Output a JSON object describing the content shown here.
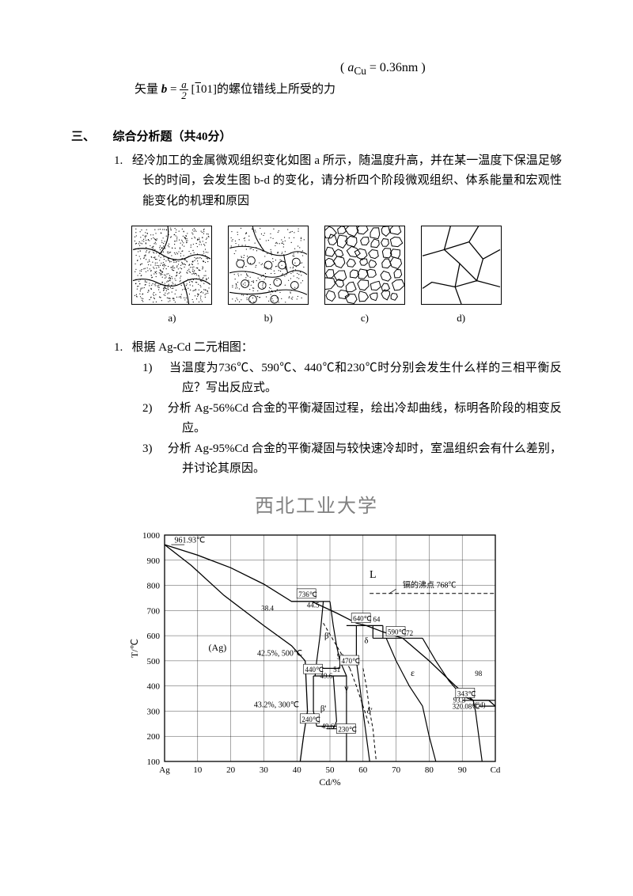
{
  "intro": {
    "pre": "矢量",
    "b": "b",
    "eq": " = ",
    "frac_num": "a",
    "frac_den": "2",
    "miller_open": " [",
    "miller_bar": "1",
    "miller_rest": "01]",
    "post": "的螺位错线上所受的力",
    "param": "( aCu = 0.36nm )",
    "param_a": "a",
    "param_sub": "Cu",
    "param_val": " = 0.36nm"
  },
  "section": {
    "num": "三、",
    "title": "综合分析题（共40分）"
  },
  "q1": {
    "num": "1.",
    "text": "经冷加工的金属微观组织变化如图 a 所示，随温度升高，并在某一温度下保温足够长的时间，会发生图 b-d 的变化，请分析四个阶段微观组织、体系能量和宏观性能变化的机理和原因"
  },
  "figlabels": {
    "a": "a)",
    "b": "b)",
    "c": "c)",
    "d": "d)"
  },
  "q2": {
    "num": "1.",
    "text": "根据 Ag-Cd 二元相图："
  },
  "q2_1": {
    "num": "1)",
    "text": "当温度为736℃、590℃、440℃和230℃时分别会发生什么样的三相平衡反应？写出反应式。"
  },
  "q2_2": {
    "num": "2)",
    "text": "分析 Ag-56%Cd 合金的平衡凝固过程，绘出冷却曲线，标明各阶段的相变反应。"
  },
  "q2_3": {
    "num": "3)",
    "text": "分析 Ag-95%Cd 合金的平衡凝固与较快速冷却时，室温组织会有什么差别，并讨论其原因。"
  },
  "watermark": "西北工业大学",
  "phase": {
    "y_title": "T/℃",
    "x_title": "Cd/%",
    "ylim": [
      100,
      1000
    ],
    "xlim": [
      0,
      100
    ],
    "yticks": [
      100,
      200,
      300,
      400,
      500,
      600,
      700,
      800,
      900,
      1000
    ],
    "xticks": [
      0,
      10,
      20,
      30,
      40,
      50,
      60,
      70,
      80,
      90,
      100
    ],
    "xlabel_left": "Ag",
    "xlabel_right": "Cd",
    "grid_color": "#000000",
    "line_color": "#000000",
    "bg": "#ffffff",
    "labels": {
      "t961": "961.93℃",
      "L": "L",
      "boil": "镉的沸点 768℃",
      "n384": "38.4",
      "n736": "736℃",
      "n445": "44.5",
      "n640": "640℃",
      "n64": "64",
      "n590": "590℃",
      "n72": "72",
      "Ag": "(Ag)",
      "n425": "42.5%, 500℃",
      "beta": "β",
      "delta": "δ",
      "n53": "53",
      "n470": "470℃",
      "n440": "440℃",
      "n496": "49.6",
      "n51": "51",
      "gamma": "γ",
      "eps": "ε",
      "n98": "98",
      "n343": "343℃",
      "n933": "93.3",
      "n432": "43.2%, 300℃",
      "n320": "320.08℃",
      "cd": "(Cd)",
      "n240": "240℃",
      "n496b": "49.6",
      "n230": "230℃",
      "betap": "β'",
      "deltap": "δ'"
    }
  }
}
